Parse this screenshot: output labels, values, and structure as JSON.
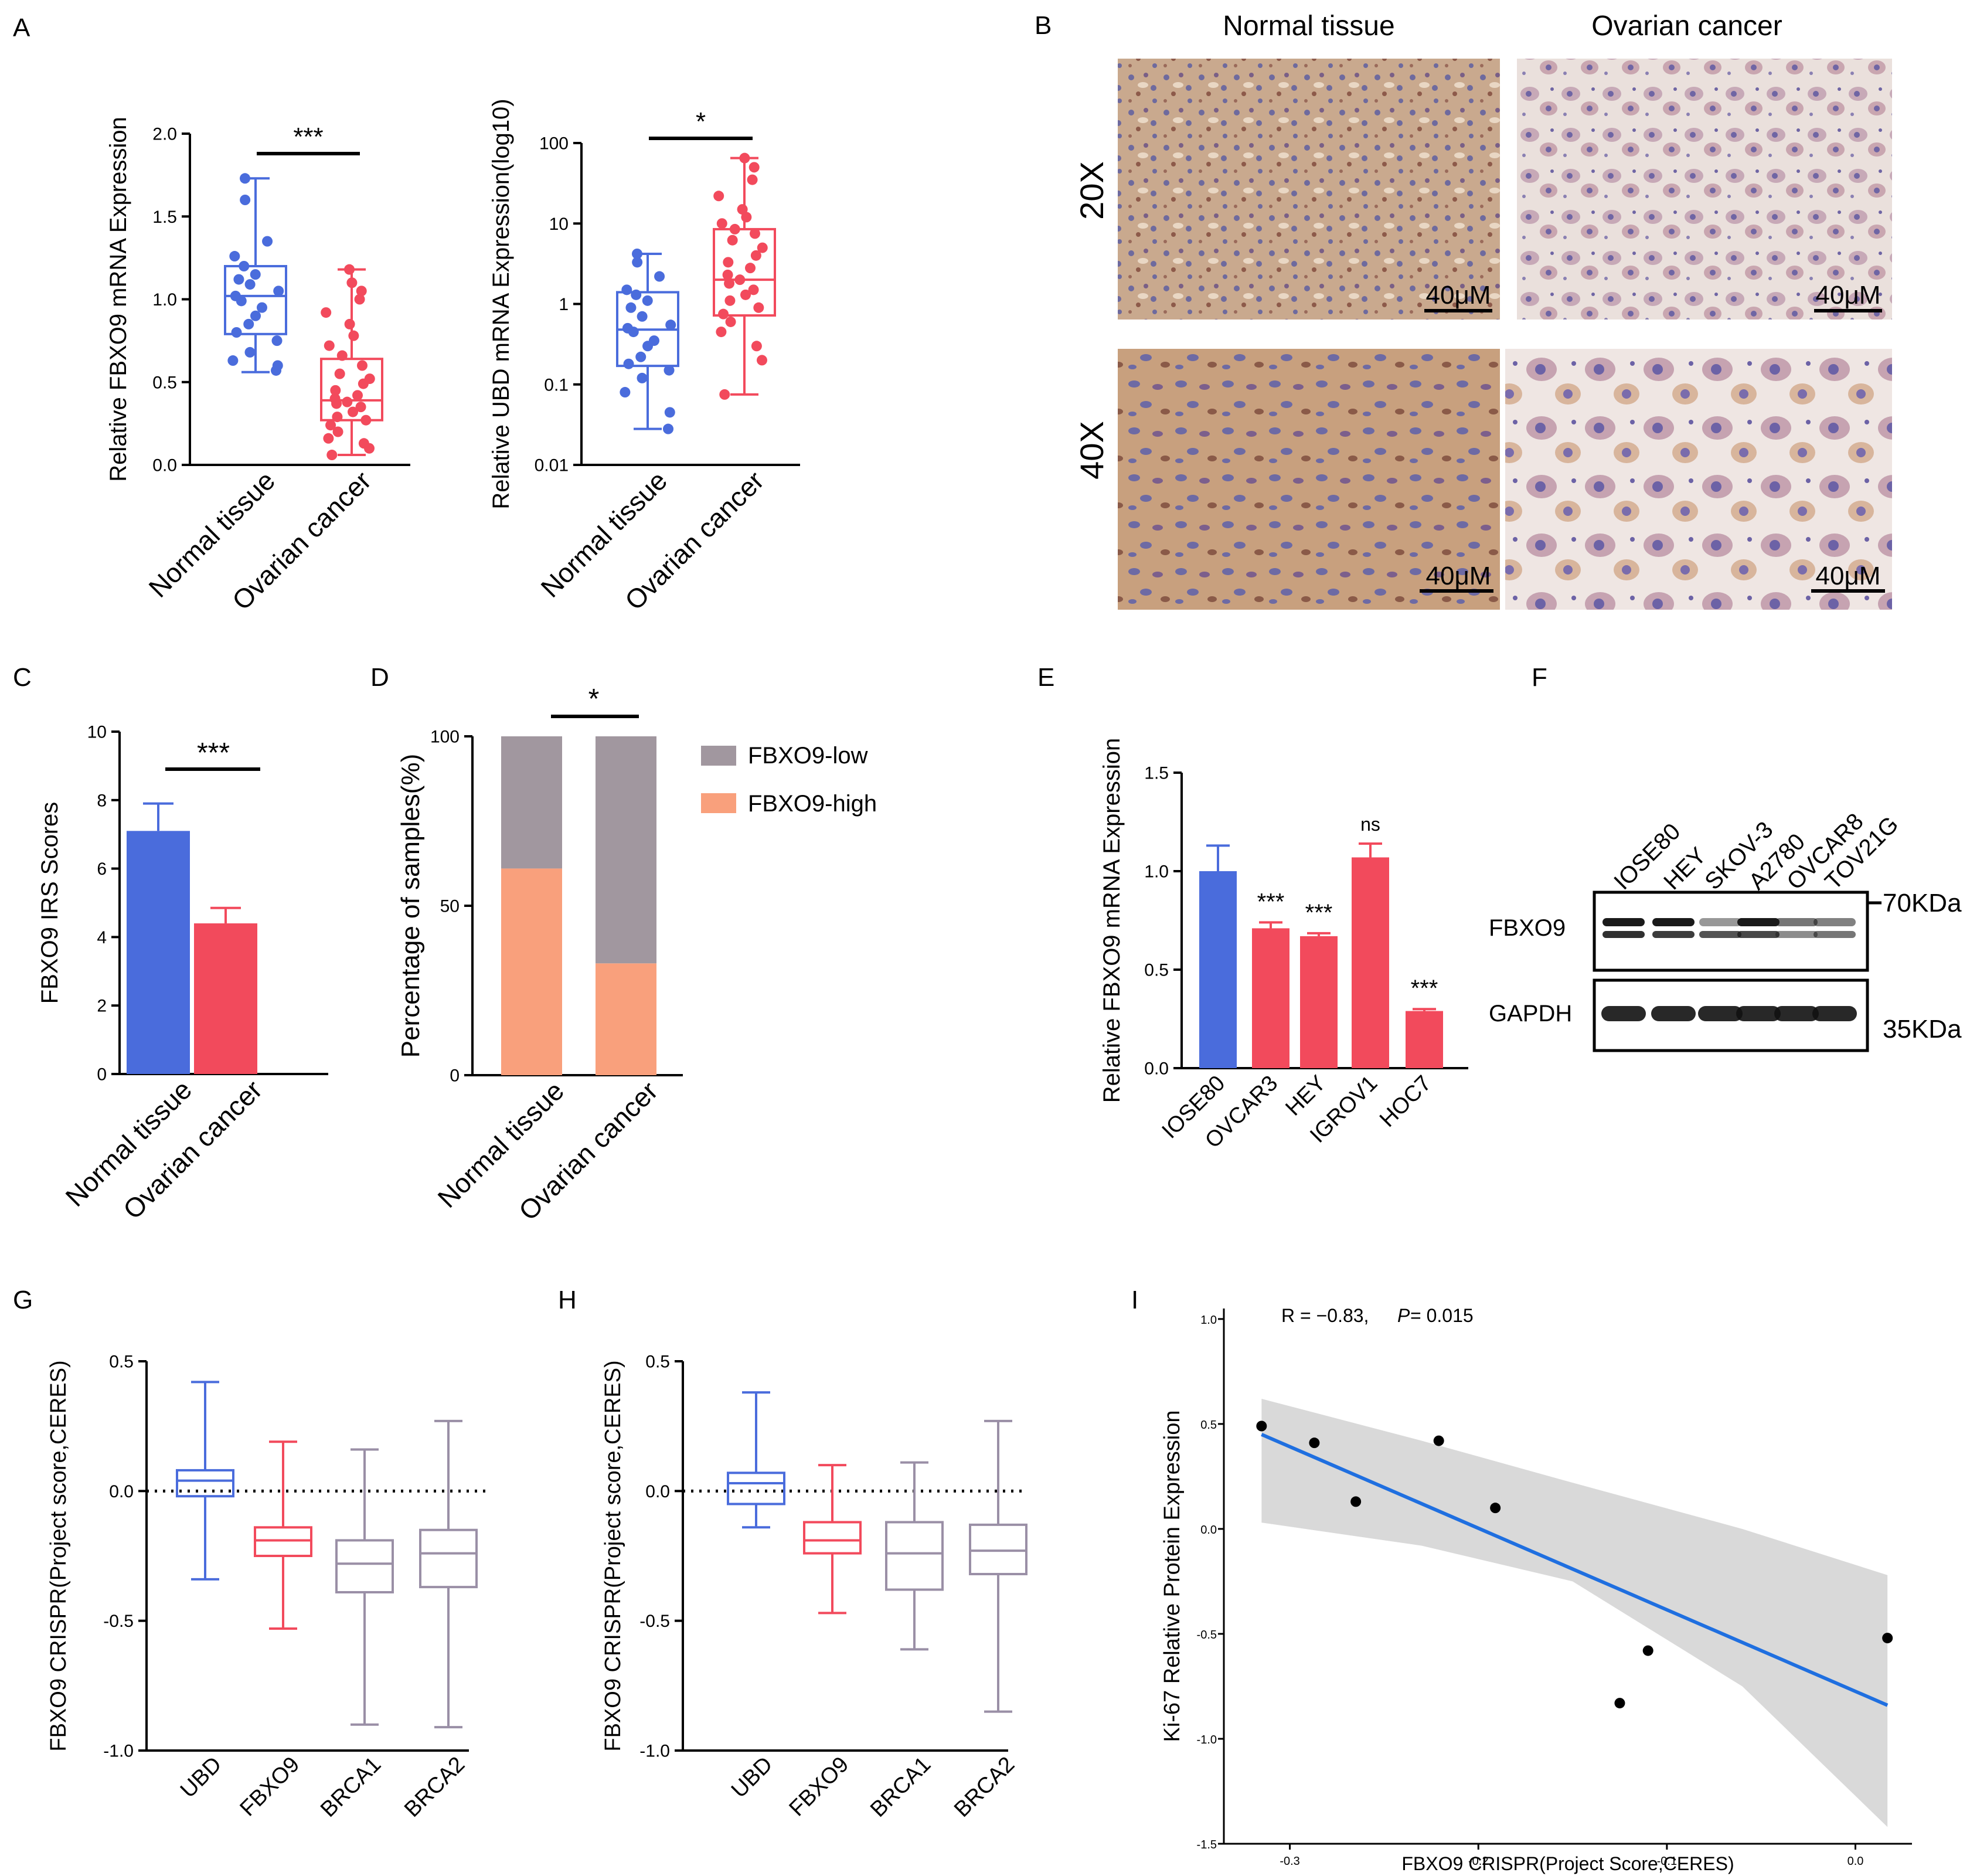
{
  "panel_letters": [
    "A",
    "B",
    "C",
    "D",
    "E",
    "F",
    "G",
    "H",
    "I"
  ],
  "colors": {
    "blue": "#4a6cdc",
    "red": "#f24a5c",
    "purple": "#9a8fa6",
    "gray_bar": "#a1979f",
    "orange": "#f9a07c",
    "line_blue": "#1f6fe0",
    "band": "#d9d9d9"
  },
  "ihc": {
    "col_titles": [
      "Normal tissue",
      "Ovarian cancer"
    ],
    "row_titles": [
      "20X",
      "40X"
    ],
    "scale_label": "40μM"
  },
  "western": {
    "lanes": [
      "IOSE80",
      "HEY",
      "SKOV-3",
      "A2780",
      "OVCAR8",
      "TOV21G"
    ],
    "rows": [
      "FBXO9",
      "GAPDH"
    ],
    "markers": [
      "70KDa",
      "35KDa"
    ]
  },
  "chart_data": [
    {
      "id": "A1",
      "type": "box+scatter",
      "ylabel": "Relative FBXO9 mRNA Expression",
      "categories": [
        "Normal tissue",
        "Ovarian cancer"
      ],
      "ylim": [
        0,
        2.0
      ],
      "yticks": [
        "0.0",
        "0.5",
        "1.0",
        "1.5",
        "2.0"
      ],
      "ytick_values": [
        0,
        0.5,
        1.0,
        1.5,
        2.0
      ],
      "significance": "***",
      "boxes": [
        {
          "min": 0.56,
          "q1": 0.79,
          "median": 1.02,
          "q3": 1.2,
          "max": 1.73
        },
        {
          "min": 0.06,
          "q1": 0.27,
          "median": 0.39,
          "q3": 0.64,
          "max": 1.18
        }
      ],
      "points": [
        [
          0.57,
          0.6,
          0.63,
          0.68,
          0.75,
          0.8,
          0.85,
          0.9,
          0.95,
          0.99,
          1.02,
          1.05,
          1.09,
          1.12,
          1.15,
          1.2,
          1.26,
          1.35,
          1.6,
          1.73
        ],
        [
          0.06,
          0.1,
          0.13,
          0.16,
          0.2,
          0.24,
          0.27,
          0.29,
          0.32,
          0.35,
          0.37,
          0.38,
          0.4,
          0.42,
          0.45,
          0.49,
          0.52,
          0.55,
          0.6,
          0.66,
          0.72,
          0.78,
          0.85,
          0.92,
          1.0,
          1.05,
          1.1,
          1.18
        ]
      ]
    },
    {
      "id": "A2",
      "type": "box+scatter",
      "yscale": "log10",
      "ylabel": "Relative UBD mRNA Expression(log10)",
      "categories": [
        "Normal tissue",
        "Ovarian cancer"
      ],
      "ylim": [
        0.01,
        100
      ],
      "yticks": [
        "0.01",
        "0.1",
        "1",
        "10",
        "100"
      ],
      "ytick_values": [
        0.01,
        0.1,
        1,
        10,
        100
      ],
      "significance": "*",
      "boxes": [
        {
          "min": 0.028,
          "q1": 0.17,
          "median": 0.48,
          "q3": 1.4,
          "max": 4.2
        },
        {
          "min": 0.075,
          "q1": 0.72,
          "median": 2.0,
          "q3": 8.5,
          "max": 65
        }
      ],
      "points": [
        [
          0.028,
          0.045,
          0.08,
          0.12,
          0.15,
          0.18,
          0.22,
          0.3,
          0.35,
          0.45,
          0.5,
          0.55,
          0.7,
          0.9,
          1.1,
          1.3,
          1.5,
          2.2,
          3.3,
          4.2
        ],
        [
          0.075,
          0.2,
          0.3,
          0.45,
          0.6,
          0.75,
          0.9,
          1.1,
          1.3,
          1.5,
          1.8,
          2.0,
          2.3,
          2.8,
          3.3,
          4.0,
          5.0,
          6.2,
          7.5,
          8.5,
          10,
          12,
          15,
          22,
          35,
          50,
          65
        ]
      ]
    },
    {
      "id": "C",
      "type": "bar",
      "ylabel": "FBXO9 IRS Scores",
      "categories": [
        "Normal tissue",
        "Ovarian cancer"
      ],
      "values": [
        7.1,
        4.4
      ],
      "errors": [
        0.8,
        0.45
      ],
      "ylim": [
        0,
        10
      ],
      "yticks": [
        "0",
        "2",
        "4",
        "6",
        "8",
        "10"
      ],
      "ytick_values": [
        0,
        2,
        4,
        6,
        8,
        10
      ],
      "significance": "***"
    },
    {
      "id": "D",
      "type": "stacked-bar",
      "ylabel": "Percentage of samples(%)",
      "categories": [
        "Normal tissue",
        "Ovarian cancer"
      ],
      "series": [
        {
          "name": "FBXO9-high",
          "values": [
            61,
            33
          ]
        },
        {
          "name": "FBXO9-low",
          "values": [
            39,
            67
          ]
        }
      ],
      "legend": [
        "FBXO9-low",
        "FBXO9-high"
      ],
      "ylim": [
        0,
        100
      ],
      "yticks": [
        "0",
        "50",
        "100"
      ],
      "ytick_values": [
        0,
        50,
        100
      ],
      "significance": "*"
    },
    {
      "id": "E",
      "type": "bar",
      "ylabel": "Relative FBXO9 mRNA Expression",
      "categories": [
        "IOSE80",
        "OVCAR3",
        "HEY",
        "IGROV1",
        "HOC7"
      ],
      "values": [
        1.0,
        0.71,
        0.67,
        1.07,
        0.29
      ],
      "errors": [
        0.13,
        0.03,
        0.015,
        0.07,
        0.01
      ],
      "labels": [
        "",
        "***",
        "***",
        "ns",
        "***"
      ],
      "ylim": [
        0,
        1.5
      ],
      "yticks": [
        "0.0",
        "0.5",
        "1.0",
        "1.5"
      ],
      "ytick_values": [
        0,
        0.5,
        1.0,
        1.5
      ]
    },
    {
      "id": "G",
      "type": "boxplot",
      "ylabel": "FBXO9 CRISPR(Project score,CERES)",
      "categories": [
        "UBD",
        "FBXO9",
        "BRCA1",
        "BRCA2"
      ],
      "ylim": [
        -1.0,
        0.5
      ],
      "yticks": [
        "-1.0",
        "-0.5",
        "0.0",
        "0.5"
      ],
      "ytick_values": [
        -1.0,
        -0.5,
        0.0,
        0.5
      ],
      "reference_line": 0,
      "boxes": [
        {
          "min": -0.34,
          "q1": -0.02,
          "median": 0.04,
          "q3": 0.08,
          "max": 0.42
        },
        {
          "min": -0.53,
          "q1": -0.25,
          "median": -0.19,
          "q3": -0.14,
          "max": 0.19
        },
        {
          "min": -0.9,
          "q1": -0.39,
          "median": -0.28,
          "q3": -0.19,
          "max": 0.16
        },
        {
          "min": -0.91,
          "q1": -0.37,
          "median": -0.24,
          "q3": -0.15,
          "max": 0.27
        }
      ]
    },
    {
      "id": "H",
      "type": "boxplot",
      "ylabel": "FBXO9 CRISPR(Project score,CERES)",
      "categories": [
        "UBD",
        "FBXO9",
        "BRCA1",
        "BRCA2"
      ],
      "ylim": [
        -1.0,
        0.5
      ],
      "yticks": [
        "-1.0",
        "-0.5",
        "0.0",
        "0.5"
      ],
      "ytick_values": [
        -1.0,
        -0.5,
        0.0,
        0.5
      ],
      "reference_line": 0,
      "boxes": [
        {
          "min": -0.14,
          "q1": -0.05,
          "median": 0.03,
          "q3": 0.07,
          "max": 0.38
        },
        {
          "min": -0.47,
          "q1": -0.24,
          "median": -0.19,
          "q3": -0.12,
          "max": 0.1
        },
        {
          "min": -0.61,
          "q1": -0.38,
          "median": -0.24,
          "q3": -0.12,
          "max": 0.11
        },
        {
          "min": -0.85,
          "q1": -0.32,
          "median": -0.23,
          "q3": -0.13,
          "max": 0.27
        }
      ]
    },
    {
      "id": "I",
      "type": "scatter",
      "xlabel": "FBXO9 CRISPR(Project Score,CERES)",
      "ylabel": "Ki-67 Relative Protein Expression",
      "annotation_R": "R = −0.83,",
      "annotation_P": "P",
      "annotation_Pval": " = 0.015",
      "xlim": [
        -0.335,
        0.03
      ],
      "ylim": [
        -1.5,
        1.05
      ],
      "xticks": [
        "-0.3",
        "-0.2",
        "-0.1",
        "0.0"
      ],
      "xtick_values": [
        -0.3,
        -0.2,
        -0.1,
        0.0
      ],
      "yticks": [
        "-1.5",
        "-1.0",
        "-0.5",
        "0.0",
        "0.5",
        "1.0"
      ],
      "ytick_values": [
        -1.5,
        -1.0,
        -0.5,
        0.0,
        0.5,
        1.0
      ],
      "x": [
        -0.315,
        -0.287,
        -0.265,
        -0.221,
        -0.191,
        -0.125,
        -0.11,
        0.017
      ],
      "y": [
        0.49,
        0.41,
        0.13,
        0.42,
        0.1,
        -0.83,
        -0.58,
        -0.52
      ],
      "fit": {
        "x": [
          -0.315,
          0.017
        ],
        "y": [
          0.45,
          -0.84
        ]
      },
      "band_upper": [
        0.62,
        0.42,
        0.22,
        0.0,
        -0.22
      ],
      "band_lower": [
        0.03,
        -0.08,
        -0.25,
        -0.75,
        -1.42
      ],
      "band_x": [
        -0.315,
        -0.23,
        -0.15,
        -0.06,
        0.017
      ]
    }
  ]
}
